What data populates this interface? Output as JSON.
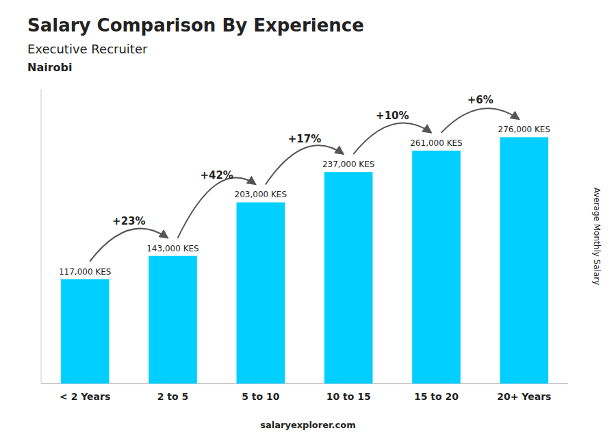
{
  "chart_data": {
    "type": "bar",
    "title": "Salary Comparison By Experience",
    "subtitle": "Executive Recruiter",
    "city": "Nairobi",
    "ylabel": "Average Monthly Salary",
    "footer": "salaryexplorer.com",
    "categories": [
      "< 2 Years",
      "2 to 5",
      "5 to 10",
      "10 to 15",
      "15 to 20",
      "20+ Years"
    ],
    "values": [
      117000,
      143000,
      203000,
      237000,
      261000,
      276000
    ],
    "value_labels": [
      "117,000 KES",
      "143,000 KES",
      "203,000 KES",
      "237,000 KES",
      "261,000 KES",
      "276,000 KES"
    ],
    "data_labels": true,
    "pct_changes": [
      "+23%",
      "+42%",
      "+17%",
      "+10%",
      "+6%"
    ],
    "color": "#00cfff",
    "ylim": [
      0,
      330000
    ],
    "grid": false,
    "tick_labels": "x"
  }
}
